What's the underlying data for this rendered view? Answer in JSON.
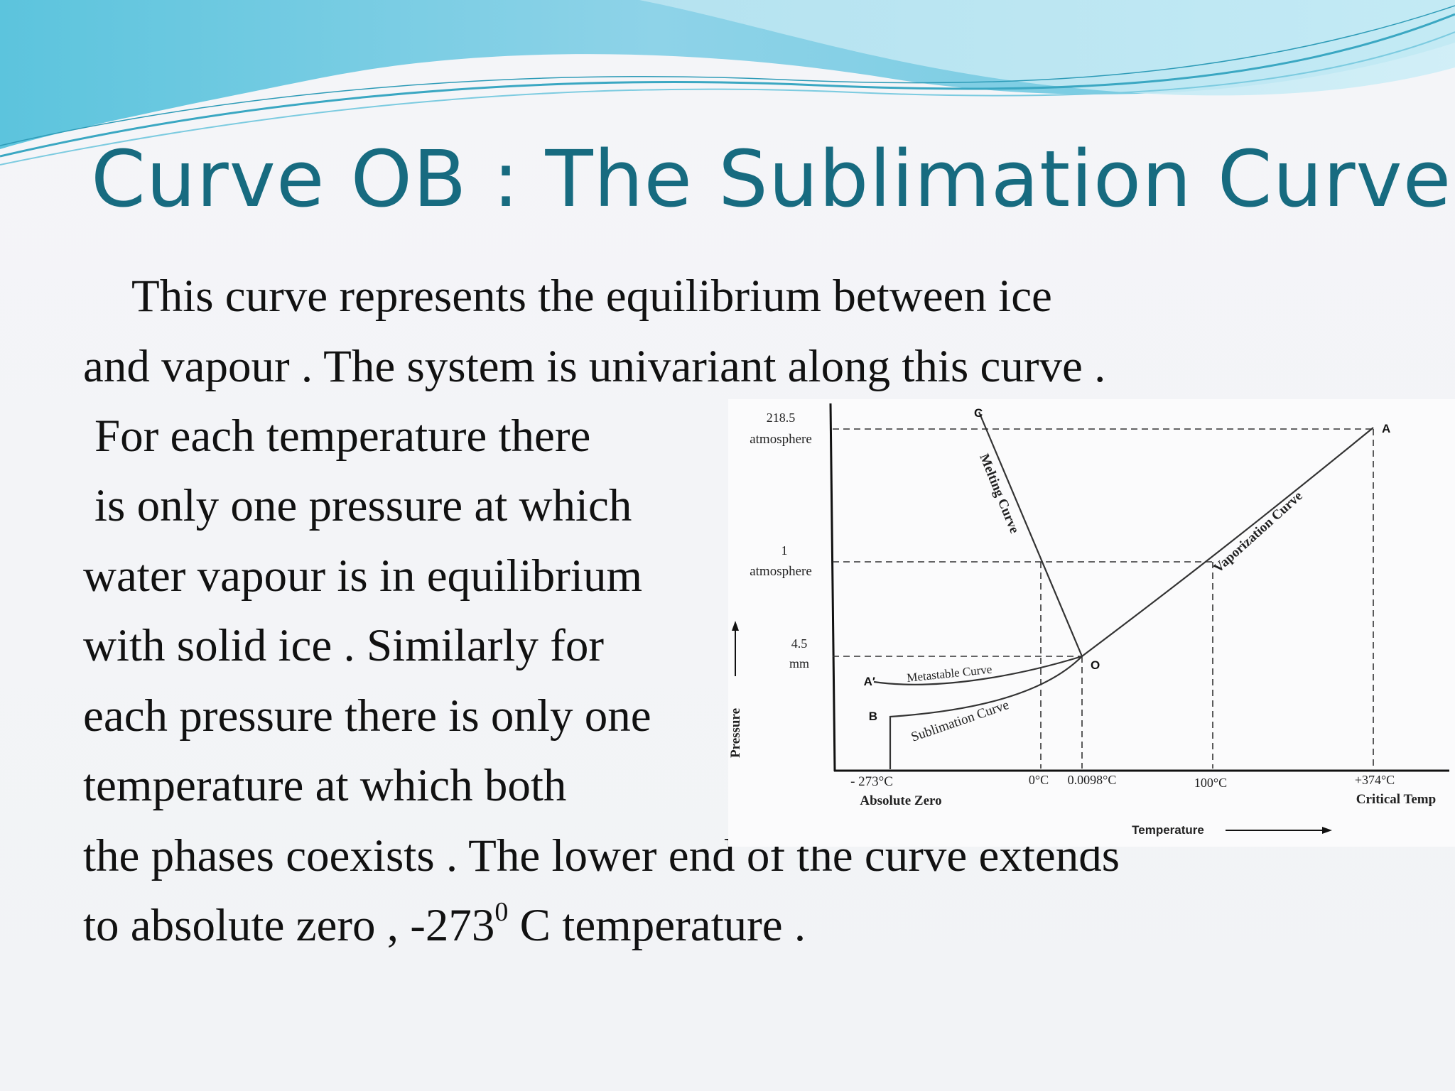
{
  "slide": {
    "title": "Curve OB : The Sublimation Curve",
    "paragraph_lines": [
      "This curve represents  the equilibrium between ice",
      "and vapour . The system is univariant along this curve .",
      "For each temperature there",
      "is only one pressure at which",
      "water  vapour is in equilibrium",
      "with solid ice . Similarly for",
      "each pressure there is only one",
      "temperature  at which both",
      "the phases coexists . The lower end of the curve extends"
    ],
    "last_line": {
      "before": "to absolute zero , -273",
      "superscript": "0",
      "after": " C temperature ."
    }
  },
  "diagram": {
    "y_labels": {
      "p_top_value": "218.5",
      "p_top_unit": "atmosphere",
      "p_mid_value": "1",
      "p_mid_unit": "atmosphere",
      "p_low_value": "4.5",
      "p_low_unit": "mm"
    },
    "y_axis_title": "Pressure",
    "x_axis_title": "Temperature",
    "x_labels": {
      "abs_zero": "- 273°C",
      "abs_zero_caption": "Absolute Zero",
      "zero_c": "0°C",
      "triple_point": "0.0098°C",
      "hundred_c": "100°C",
      "critical": "+374°C",
      "critical_caption": "Critical Temp"
    },
    "points": {
      "A": "A",
      "A_prime": "A′",
      "B": "B",
      "C": "C",
      "O": "O"
    },
    "curve_labels": {
      "melting": "Melting Curve",
      "vaporization": "Vaporization Curve",
      "metastable": "Metastable Curve",
      "sublimation": "Sublimation Curve"
    }
  },
  "colors": {
    "title": "#176b80",
    "body_text": "#111111",
    "wave_light": "#9fd8ea",
    "wave_teal": "#4fb8d0"
  }
}
